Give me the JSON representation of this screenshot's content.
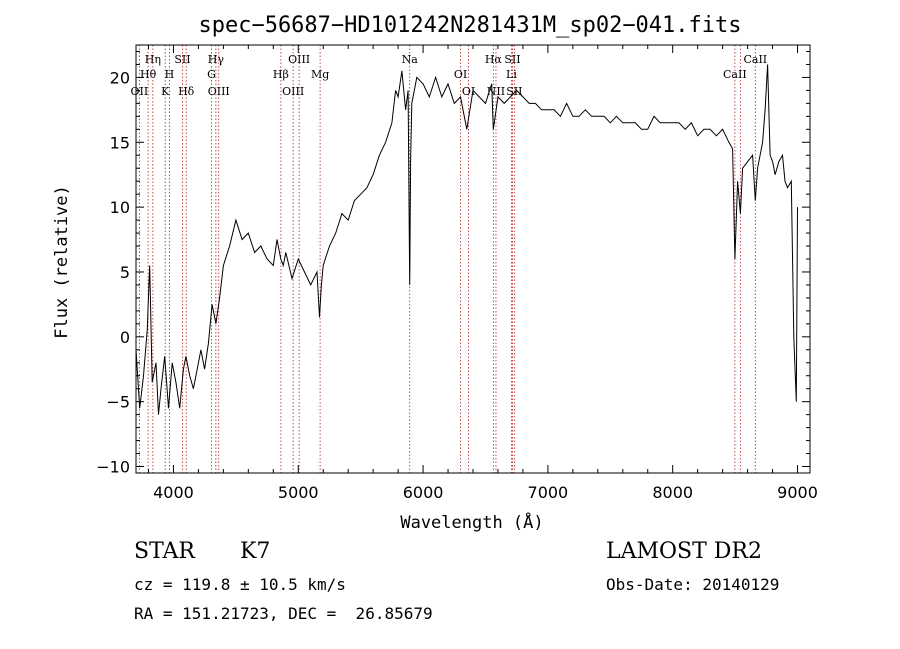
{
  "chart_data": {
    "type": "line",
    "title": "spec−56687−HD101242N281431M_sp02−041.fits",
    "xlabel": "Wavelength (Å)",
    "ylabel": "Flux (relative)",
    "xlim": [
      3700,
      9100
    ],
    "ylim": [
      -10.5,
      22.5
    ],
    "xticks": [
      4000,
      5000,
      6000,
      7000,
      8000,
      9000
    ],
    "yticks": [
      -10,
      -5,
      0,
      5,
      10,
      15,
      20
    ],
    "ytick_labels": [
      "−10",
      "−5",
      "0",
      "5",
      "10",
      "15",
      "20"
    ],
    "grid": false,
    "series": [
      {
        "x": [
          3700,
          3730,
          3760,
          3790,
          3810,
          3830,
          3860,
          3880,
          3900,
          3930,
          3960,
          3990,
          4020,
          4050,
          4080,
          4100,
          4130,
          4160,
          4190,
          4220,
          4250,
          4280,
          4310,
          4340,
          4370,
          4400,
          4450,
          4500,
          4550,
          4600,
          4650,
          4700,
          4750,
          4800,
          4830,
          4860,
          4880,
          4900,
          4950,
          5000,
          5050,
          5100,
          5150,
          5170,
          5185,
          5200,
          5250,
          5300,
          5350,
          5400,
          5450,
          5500,
          5550,
          5600,
          5650,
          5700,
          5750,
          5780,
          5800,
          5830,
          5860,
          5880,
          5893,
          5900,
          5910,
          5950,
          6000,
          6050,
          6100,
          6150,
          6200,
          6250,
          6300,
          6350,
          6400,
          6450,
          6500,
          6550,
          6563,
          6600,
          6650,
          6700,
          6750,
          6800,
          6850,
          6900,
          6950,
          7000,
          7050,
          7100,
          7150,
          7200,
          7250,
          7300,
          7350,
          7400,
          7450,
          7500,
          7550,
          7600,
          7650,
          7700,
          7750,
          7800,
          7850,
          7900,
          7950,
          8000,
          8050,
          8100,
          8150,
          8200,
          8250,
          8300,
          8350,
          8400,
          8450,
          8480,
          8498,
          8520,
          8542,
          8560,
          8600,
          8640,
          8662,
          8680,
          8700,
          8720,
          8740,
          8760,
          8780,
          8800,
          8820,
          8850,
          8880,
          8900,
          8920,
          8950,
          8970,
          8990,
          9000
        ],
        "y": [
          -1.0,
          -5.5,
          -3.0,
          0.5,
          5.5,
          -3.5,
          -2.0,
          -6.0,
          -4.0,
          -1.5,
          -5.5,
          -2.0,
          -3.5,
          -5.5,
          -2.5,
          -1.5,
          -3.0,
          -4.0,
          -2.5,
          -1.0,
          -2.5,
          -0.5,
          2.5,
          1.0,
          3.0,
          5.5,
          7.0,
          9.0,
          7.5,
          8.0,
          6.5,
          7.0,
          6.0,
          5.5,
          7.5,
          6.0,
          5.5,
          6.5,
          4.5,
          6.0,
          5.0,
          4.0,
          5.0,
          1.5,
          4.0,
          5.5,
          7.0,
          8.0,
          9.5,
          9.0,
          10.5,
          11.0,
          11.5,
          12.5,
          14.0,
          15.0,
          16.5,
          19.0,
          18.5,
          20.5,
          17.5,
          19.0,
          4.0,
          13.5,
          18.0,
          20.0,
          19.5,
          18.5,
          20.0,
          18.5,
          19.5,
          18.0,
          18.5,
          16.0,
          19.0,
          18.5,
          18.0,
          19.5,
          16.0,
          18.5,
          18.0,
          18.5,
          19.0,
          18.5,
          18.0,
          18.0,
          17.5,
          17.5,
          17.5,
          17.0,
          18.0,
          17.0,
          17.0,
          17.5,
          17.0,
          17.0,
          17.0,
          16.5,
          17.0,
          16.5,
          16.5,
          16.5,
          16.0,
          16.0,
          17.0,
          16.5,
          16.5,
          16.5,
          16.5,
          16.0,
          16.5,
          15.5,
          16.0,
          16.0,
          15.5,
          16.0,
          15.0,
          14.5,
          6.0,
          12.0,
          9.5,
          13.0,
          13.5,
          14.0,
          10.5,
          13.0,
          14.0,
          15.0,
          17.5,
          21.0,
          14.0,
          13.5,
          12.5,
          13.5,
          14.0,
          12.0,
          11.5,
          12.0,
          0.0,
          -5.0,
          10.0
        ]
      }
    ],
    "line_labels": [
      {
        "label": "Hη",
        "x": 3835,
        "row": 1
      },
      {
        "label": "Hθ",
        "x": 3797,
        "row": 2
      },
      {
        "label": "OII",
        "x": 3727,
        "row": 3
      },
      {
        "label": "SII",
        "x": 4072,
        "row": 1
      },
      {
        "label": "H",
        "x": 3968,
        "row": 2
      },
      {
        "label": "K",
        "x": 3934,
        "row": 3
      },
      {
        "label": "Hδ",
        "x": 4102,
        "row": 3
      },
      {
        "label": "Hγ",
        "x": 4340,
        "row": 1
      },
      {
        "label": "G",
        "x": 4305,
        "row": 2
      },
      {
        "label": "OIII",
        "x": 4363,
        "row": 3
      },
      {
        "label": "OIII",
        "x": 5007,
        "row": 1
      },
      {
        "label": "Hβ",
        "x": 4861,
        "row": 2
      },
      {
        "label": "OIII",
        "x": 4959,
        "row": 3
      },
      {
        "label": "Mg",
        "x": 5175,
        "row": 2
      },
      {
        "label": "Na",
        "x": 5893,
        "row": 1
      },
      {
        "label": "OI",
        "x": 6300,
        "row": 2
      },
      {
        "label": "OI",
        "x": 6364,
        "row": 3
      },
      {
        "label": "Hα",
        "x": 6563,
        "row": 1
      },
      {
        "label": "SII",
        "x": 6716,
        "row": 1
      },
      {
        "label": "Li",
        "x": 6708,
        "row": 2
      },
      {
        "label": "NII",
        "x": 6584,
        "row": 3
      },
      {
        "label": "SII",
        "x": 6731,
        "row": 3
      },
      {
        "label": "CaII",
        "x": 8662,
        "row": 1
      },
      {
        "label": "CaII",
        "x": 8498,
        "row": 2
      }
    ],
    "line_markers": [
      3727,
      3797,
      3835,
      3934,
      3968,
      4072,
      4102,
      4305,
      4340,
      4363,
      4861,
      4959,
      5007,
      5175,
      5893,
      6300,
      6364,
      6563,
      6584,
      6708,
      6716,
      6731,
      8498,
      8542,
      8662
    ]
  },
  "info": {
    "object_class": "STAR",
    "subclass": "K7",
    "survey": "LAMOST DR2",
    "cz": "cz = 119.8 ± 10.5 km/s",
    "obs_date": "Obs-Date: 20140129",
    "coords": "RA = 151.21723, DEC =  26.85679"
  }
}
